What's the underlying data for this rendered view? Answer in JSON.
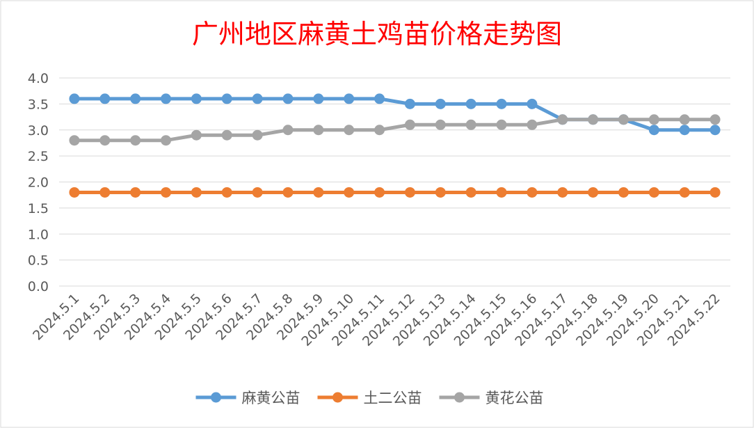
{
  "chart_data": {
    "type": "line",
    "title": "广州地区麻黄土鸡苗价格走势图",
    "title_color": "#ff0000",
    "xlabel": "",
    "ylabel": "",
    "ylim": [
      0,
      4.0
    ],
    "yticks": [
      "0.0",
      "0.5",
      "1.0",
      "1.5",
      "2.0",
      "2.5",
      "3.0",
      "3.5",
      "4.0"
    ],
    "grid": true,
    "legend_position": "bottom",
    "categories": [
      "2024.5.1",
      "2024.5.2",
      "2024.5.3",
      "2024.5.4",
      "2024.5.5",
      "2024.5.6",
      "2024.5.7",
      "2024.5.8",
      "2024.5.9",
      "2024.5.10",
      "2024.5.11",
      "2024.5.12",
      "2024.5.13",
      "2024.5.14",
      "2024.5.15",
      "2024.5.16",
      "2024.5.17",
      "2024.5.18",
      "2024.5.19",
      "2024.5.20",
      "2024.5.21",
      "2024.5.22"
    ],
    "series": [
      {
        "name": "麻黄公苗",
        "color": "#5b9bd5",
        "values": [
          3.6,
          3.6,
          3.6,
          3.6,
          3.6,
          3.6,
          3.6,
          3.6,
          3.6,
          3.6,
          3.6,
          3.5,
          3.5,
          3.5,
          3.5,
          3.5,
          3.2,
          3.2,
          3.2,
          3.0,
          3.0,
          3.0
        ]
      },
      {
        "name": "土二公苗",
        "color": "#ed7d31",
        "values": [
          1.8,
          1.8,
          1.8,
          1.8,
          1.8,
          1.8,
          1.8,
          1.8,
          1.8,
          1.8,
          1.8,
          1.8,
          1.8,
          1.8,
          1.8,
          1.8,
          1.8,
          1.8,
          1.8,
          1.8,
          1.8,
          1.8
        ]
      },
      {
        "name": "黄花公苗",
        "color": "#a5a5a5",
        "values": [
          2.8,
          2.8,
          2.8,
          2.8,
          2.9,
          2.9,
          2.9,
          3.0,
          3.0,
          3.0,
          3.0,
          3.1,
          3.1,
          3.1,
          3.1,
          3.1,
          3.2,
          3.2,
          3.2,
          3.2,
          3.2,
          3.2
        ]
      }
    ]
  }
}
